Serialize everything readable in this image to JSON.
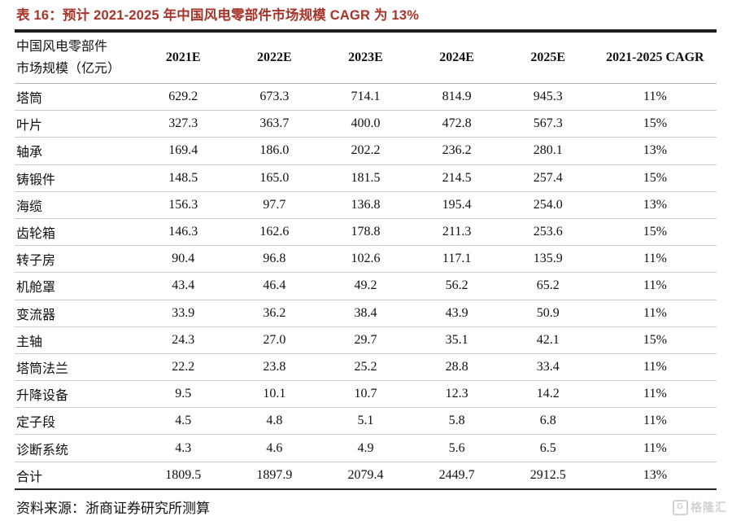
{
  "title": "表 16：预计 2021-2025 年中国风电零部件市场规模 CAGR 为 13%",
  "colors": {
    "title_red": "#a73428",
    "border_dark": "#1e1e1e",
    "row_line": "#cccccc",
    "watermark_gray": "#d2d2d2"
  },
  "table": {
    "header": {
      "label_line1": "中国风电零部件",
      "label_line2": "市场规模（亿元）",
      "columns": [
        "2021E",
        "2022E",
        "2023E",
        "2024E",
        "2025E",
        "2021-2025 CAGR"
      ]
    },
    "rows": [
      {
        "name": "塔筒",
        "values": [
          "629.2",
          "673.3",
          "714.1",
          "814.9",
          "945.3",
          "11%"
        ]
      },
      {
        "name": "叶片",
        "values": [
          "327.3",
          "363.7",
          "400.0",
          "472.8",
          "567.3",
          "15%"
        ]
      },
      {
        "name": "轴承",
        "values": [
          "169.4",
          "186.0",
          "202.2",
          "236.2",
          "280.1",
          "13%"
        ]
      },
      {
        "name": "铸锻件",
        "values": [
          "148.5",
          "165.0",
          "181.5",
          "214.5",
          "257.4",
          "15%"
        ]
      },
      {
        "name": "海缆",
        "values": [
          "156.3",
          "97.7",
          "136.8",
          "195.4",
          "254.0",
          "13%"
        ]
      },
      {
        "name": "齿轮箱",
        "values": [
          "146.3",
          "162.6",
          "178.8",
          "211.3",
          "253.6",
          "15%"
        ]
      },
      {
        "name": "转子房",
        "values": [
          "90.4",
          "96.8",
          "102.6",
          "117.1",
          "135.9",
          "11%"
        ]
      },
      {
        "name": "机舱罩",
        "values": [
          "43.4",
          "46.4",
          "49.2",
          "56.2",
          "65.2",
          "11%"
        ]
      },
      {
        "name": "变流器",
        "values": [
          "33.9",
          "36.2",
          "38.4",
          "43.9",
          "50.9",
          "11%"
        ]
      },
      {
        "name": "主轴",
        "values": [
          "24.3",
          "27.0",
          "29.7",
          "35.1",
          "42.1",
          "15%"
        ]
      },
      {
        "name": "塔筒法兰",
        "values": [
          "22.2",
          "23.8",
          "25.2",
          "28.8",
          "33.4",
          "11%"
        ]
      },
      {
        "name": "升降设备",
        "values": [
          "9.5",
          "10.1",
          "10.7",
          "12.3",
          "14.2",
          "11%"
        ]
      },
      {
        "name": "定子段",
        "values": [
          "4.5",
          "4.8",
          "5.1",
          "5.8",
          "6.8",
          "11%"
        ]
      },
      {
        "name": "诊断系统",
        "values": [
          "4.3",
          "4.6",
          "4.9",
          "5.6",
          "6.5",
          "11%"
        ]
      },
      {
        "name": "合计",
        "values": [
          "1809.5",
          "1897.9",
          "2079.4",
          "2449.7",
          "2912.5",
          "13%"
        ]
      }
    ]
  },
  "source": "资料来源：浙商证券研究所测算",
  "watermark": {
    "icon": "G",
    "text": "格隆汇"
  }
}
